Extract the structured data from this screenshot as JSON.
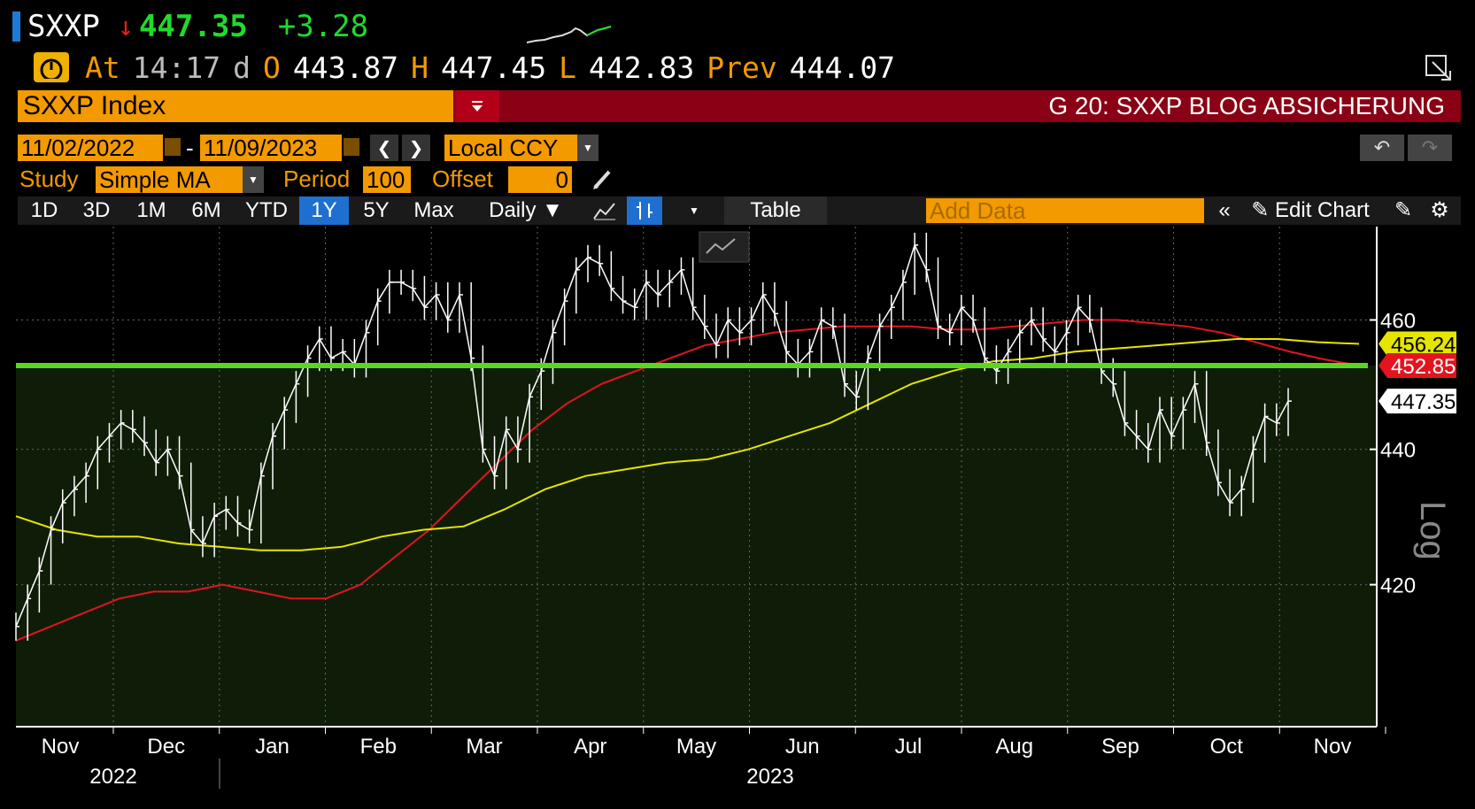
{
  "header": {
    "ticker": "SXXP",
    "direction_arrow": "↓",
    "last_price": "447.35",
    "change": "+3.28",
    "at_label": "At",
    "time": "14:17",
    "d_label": "d",
    "open_label": "O",
    "open": "443.87",
    "high_label": "H",
    "high": "447.45",
    "low_label": "L",
    "low": "442.83",
    "prev_label": "Prev",
    "prev": "444.07"
  },
  "security": {
    "input_value": "SXXP Index",
    "title": "G 20: SXXP BLOG ABSICHERUNG"
  },
  "date_range": {
    "start": "11/02/2022",
    "separator": "-",
    "end": "11/09/2023",
    "currency": "Local CCY"
  },
  "study": {
    "study_label": "Study",
    "study_value": "Simple MA",
    "period_label": "Period",
    "period_value": "100",
    "offset_label": "Offset",
    "offset_value": "0"
  },
  "toolbar": {
    "ranges": [
      "1D",
      "3D",
      "1M",
      "6M",
      "YTD",
      "1Y",
      "5Y",
      "Max"
    ],
    "active_range": "1Y",
    "frequency": "Daily ▼",
    "table_label": "Table",
    "add_data_placeholder": "Add Data",
    "edit_chart_label": "Edit Chart"
  },
  "colors": {
    "accent_orange": "#f39a00",
    "positive_green": "#1fdb2b",
    "security_bar": "#8a0015",
    "ma100": "#e3141e",
    "ma200": "#e5e500",
    "hline": "#5ad620"
  },
  "chart_data": {
    "type": "line",
    "scale": "log",
    "y_axis_label": "Log",
    "ylim": [
      400,
      475
    ],
    "yticks": [
      420,
      440,
      460
    ],
    "x_month_labels": [
      "Nov",
      "Dec",
      "Jan",
      "Feb",
      "Mar",
      "Apr",
      "May",
      "Jun",
      "Jul",
      "Aug",
      "Sep",
      "Oct",
      "Nov"
    ],
    "x_year_labels": [
      "2022",
      "2023"
    ],
    "horizontal_line": 452.85,
    "last_value_labels": [
      {
        "value": "456.24",
        "color": "#e5e500",
        "text_color": "#000"
      },
      {
        "value": "452.85",
        "color": "#e3141e",
        "text_color": "#fff"
      },
      {
        "value": "447.35",
        "color": "#ffffff",
        "text_color": "#000"
      }
    ],
    "series": [
      {
        "type": "price",
        "color": "#ffffff",
        "values": [
          414,
          418,
          422,
          428,
          432,
          434,
          436,
          440,
          442,
          444,
          443,
          441,
          438,
          440,
          436,
          428,
          426,
          430,
          431,
          429,
          428,
          436,
          442,
          446,
          450,
          454,
          457,
          454,
          455,
          453,
          458,
          463,
          466,
          466,
          465,
          462,
          464,
          460,
          464,
          454,
          440,
          436,
          443,
          440,
          448,
          452,
          458,
          463,
          468,
          470,
          469,
          465,
          463,
          462,
          466,
          464,
          466,
          468,
          462,
          459,
          456,
          460,
          458,
          460,
          464,
          461,
          455,
          453,
          455,
          460,
          459,
          450,
          448,
          454,
          459,
          462,
          466,
          472,
          468,
          459,
          458,
          462,
          460,
          454,
          452,
          455,
          458,
          460,
          457,
          455,
          458,
          462,
          460,
          452,
          450,
          444,
          442,
          440,
          446,
          442,
          446,
          450,
          441,
          435,
          432,
          434,
          440,
          445,
          444,
          447.35
        ]
      },
      {
        "type": "ma",
        "name": "MA 100",
        "color": "#e3141e",
        "values": [
          412,
          414,
          416,
          418,
          419,
          419,
          420,
          419,
          418,
          418,
          420,
          424,
          428,
          433,
          438,
          443,
          447,
          450,
          452,
          454,
          456,
          457,
          458,
          458.5,
          459,
          459,
          459,
          458.5,
          458.5,
          459,
          459.5,
          460,
          460,
          459.5,
          459,
          458,
          456.5,
          455,
          453.8,
          452.85
        ]
      },
      {
        "type": "ma",
        "name": "MA 200",
        "color": "#e5e500",
        "values": [
          430,
          428,
          427,
          427,
          426,
          425.5,
          425,
          425,
          425.5,
          427,
          428,
          428.5,
          431,
          434,
          436,
          437,
          438,
          438.5,
          440,
          442,
          444,
          447,
          450,
          452,
          453.5,
          454,
          455,
          455.5,
          456,
          456.5,
          457,
          457,
          456.5,
          456.24
        ]
      }
    ]
  }
}
